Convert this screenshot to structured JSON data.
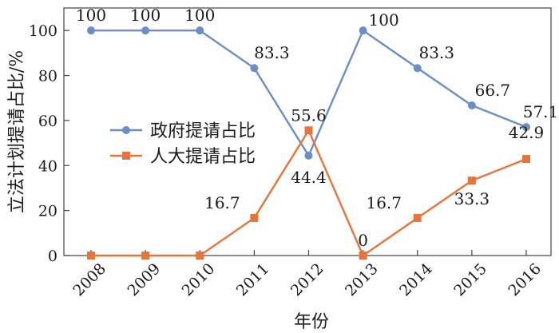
{
  "chart_data": {
    "type": "line",
    "xlabel": "年份",
    "ylabel": "立法计划提请占比/%",
    "x": [
      "2008",
      "2009",
      "2010",
      "2011",
      "2012",
      "2013",
      "2014",
      "2015",
      "2016"
    ],
    "ylim": [
      0,
      110
    ],
    "yticks": [
      0,
      20,
      40,
      60,
      80,
      100
    ],
    "grid": false,
    "legend_position": "center-left",
    "series": [
      {
        "name": "政府提请占比",
        "color": "#6b8ec4",
        "marker": "circle",
        "values": [
          100,
          100,
          100,
          83.3,
          44.4,
          100,
          83.3,
          66.7,
          57.1
        ],
        "labels": [
          "100",
          "100",
          "100",
          "83.3",
          "44.4",
          "100",
          "83.3",
          "66.7",
          "57.1"
        ]
      },
      {
        "name": "人大提请占比",
        "color": "#e8743b",
        "marker": "square",
        "values": [
          0,
          0,
          0,
          16.7,
          55.6,
          0,
          16.7,
          33.3,
          42.9
        ],
        "labels": [
          "",
          "",
          "",
          "16.7",
          "55.6",
          "0",
          "16.7",
          "33.3",
          "42.9"
        ]
      }
    ]
  }
}
